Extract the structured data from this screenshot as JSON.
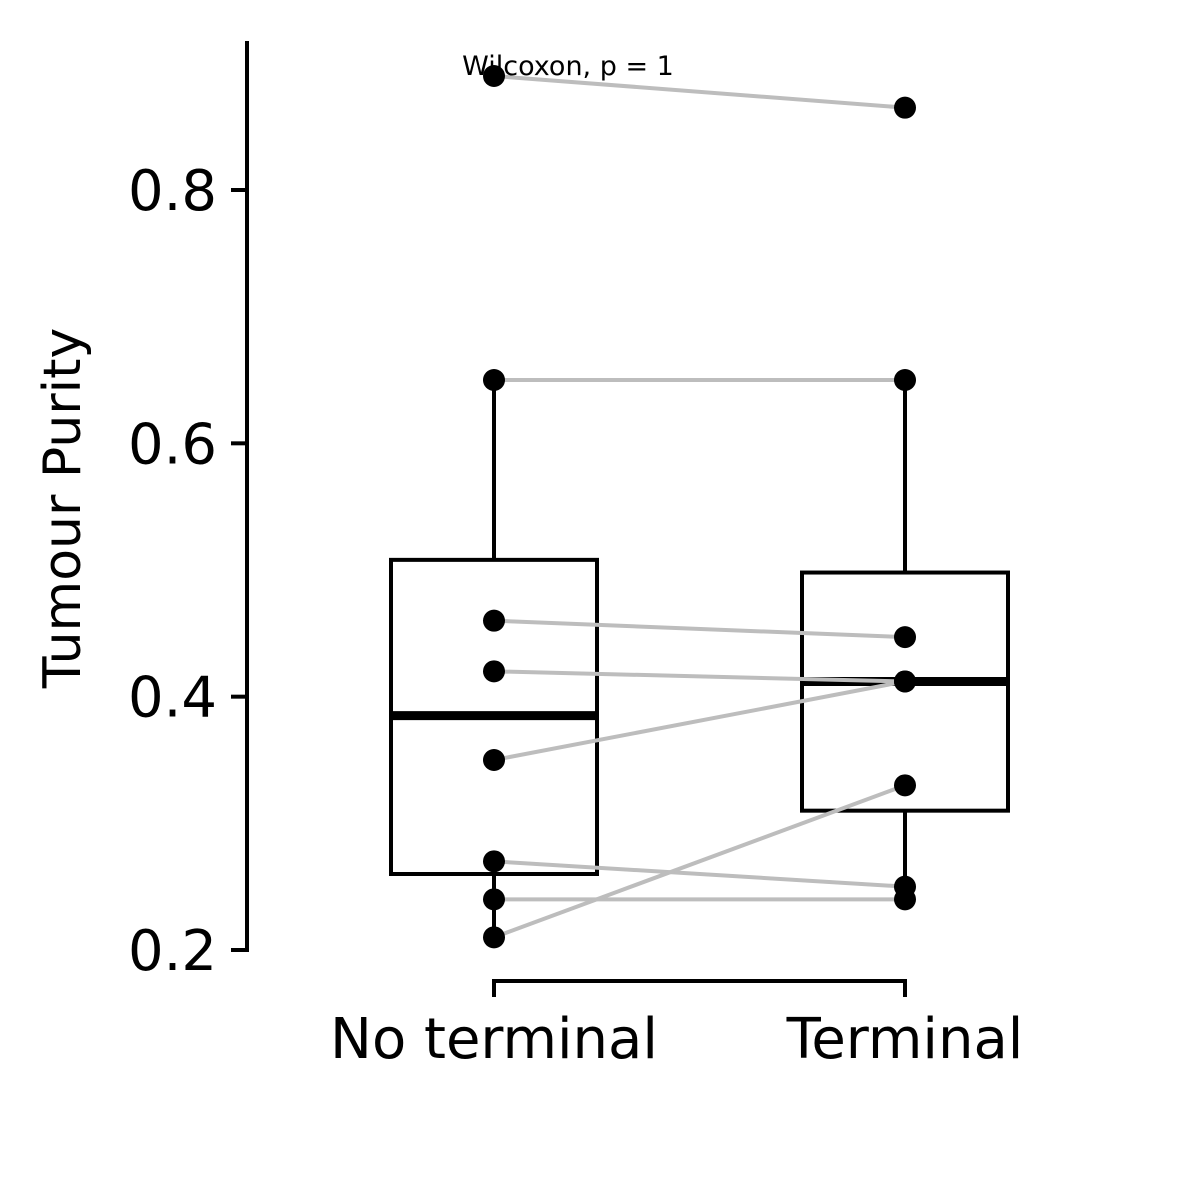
{
  "chart_data": {
    "type": "box",
    "title": "",
    "xlabel": "",
    "ylabel": "Tumour Purity",
    "ylim": [
      0.18,
      0.92
    ],
    "yticks": [
      0.2,
      0.4,
      0.6,
      0.8
    ],
    "ytick_labels": [
      "0.2",
      "0.4",
      "0.6",
      "0.8"
    ],
    "categories": [
      "No terminal",
      "Terminal"
    ],
    "annotation": "Wilcoxon, p = 1",
    "boxes": [
      {
        "q1": 0.26,
        "median": 0.385,
        "q3": 0.508,
        "whisker_low": 0.21,
        "whisker_high": 0.65
      },
      {
        "q1": 0.31,
        "median": 0.412,
        "q3": 0.498,
        "whisker_low": 0.24,
        "whisker_high": 0.65
      }
    ],
    "pairs": [
      [
        0.89,
        0.865
      ],
      [
        0.65,
        0.65
      ],
      [
        0.46,
        0.447
      ],
      [
        0.42,
        0.412
      ],
      [
        0.35,
        0.412
      ],
      [
        0.27,
        0.25
      ],
      [
        0.24,
        0.24
      ],
      [
        0.21,
        0.33
      ]
    ],
    "colors": {
      "line": "#bdbdbd",
      "point": "#000000",
      "box": "#000000"
    },
    "grid": false,
    "legend": "none"
  }
}
